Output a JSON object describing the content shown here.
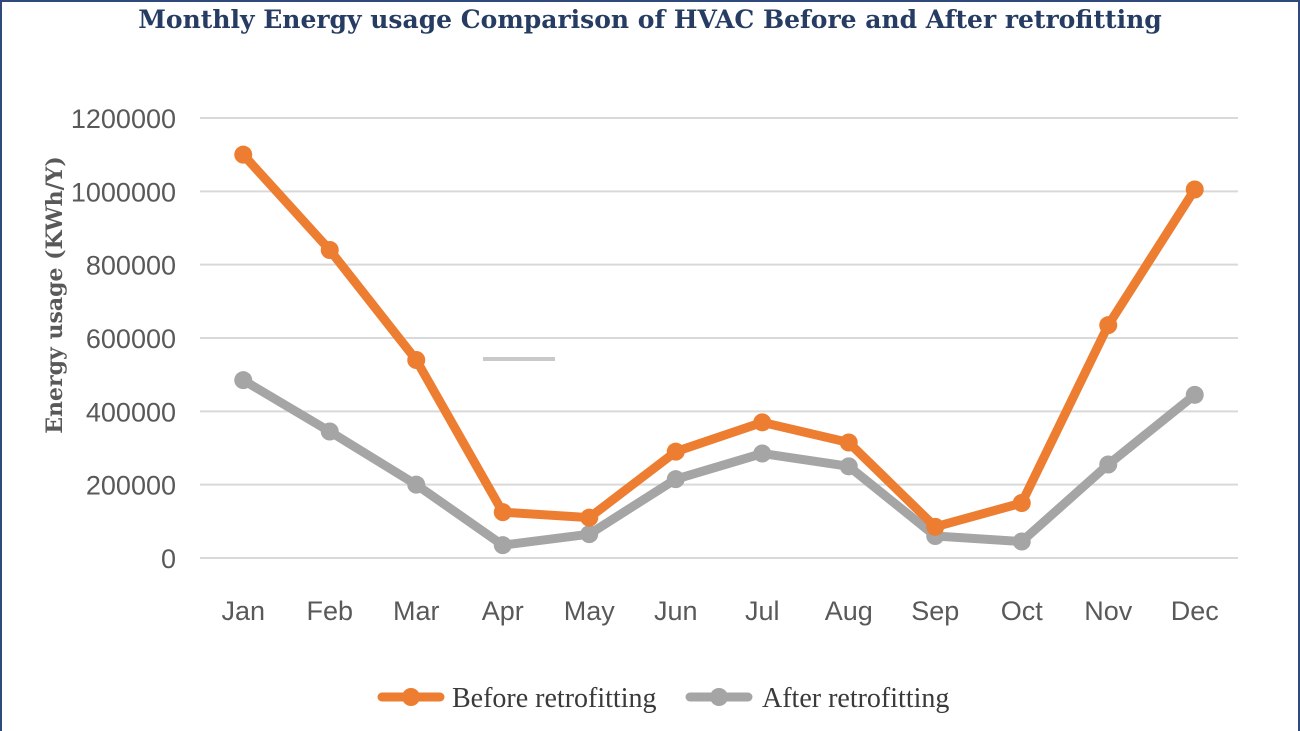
{
  "chart_data": {
    "type": "line",
    "title": "Monthly Energy usage Comparison of HVAC Before and After retrofitting",
    "xlabel": "",
    "ylabel": "Energy usage (KWh/Y)",
    "categories": [
      "Jan",
      "Feb",
      "Mar",
      "Apr",
      "May",
      "Jun",
      "Jul",
      "Aug",
      "Sep",
      "Oct",
      "Nov",
      "Dec"
    ],
    "ylim": [
      0,
      1200000
    ],
    "yticks": [
      "0",
      "200000",
      "400000",
      "600000",
      "800000",
      "1000000",
      "1200000"
    ],
    "grid": true,
    "legend_position": "bottom",
    "series": [
      {
        "name": "Before retrofitting",
        "color": "#ed7d31",
        "values": [
          1100000,
          840000,
          540000,
          125000,
          110000,
          290000,
          370000,
          315000,
          85000,
          150000,
          635000,
          1005000
        ]
      },
      {
        "name": "After retrofitting",
        "color": "#a5a5a5",
        "values": [
          485000,
          345000,
          200000,
          35000,
          65000,
          215000,
          285000,
          250000,
          60000,
          45000,
          255000,
          445000
        ]
      }
    ]
  }
}
